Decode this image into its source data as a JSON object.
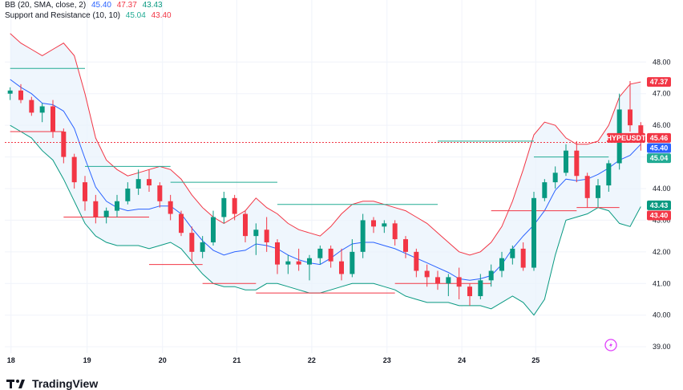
{
  "legend": {
    "bb_label": "BB (20, SMA, close, 2)",
    "bb_basis": "45.40",
    "bb_upper": "47.37",
    "bb_lower": "43.43",
    "sr_label": "Support and Resistance (10, 10)",
    "sr_resistance": "45.04",
    "sr_support": "43.40"
  },
  "brand": {
    "name": "TradingView"
  },
  "colors": {
    "up": "#089981",
    "down": "#f23645",
    "basis": "#2962ff",
    "upper": "#f23645",
    "lower": "#089981",
    "band_fill": "#e8f2fc",
    "resistance": "#22ab94",
    "support": "#f23645"
  },
  "chart_data": {
    "type": "candlestick",
    "symbol_tag": "HYPEUSDT",
    "y_ticks": [
      39.0,
      40.0,
      41.0,
      42.0,
      43.0,
      44.0,
      45.0,
      46.0,
      47.0,
      48.0
    ],
    "y_tick_labels": [
      "39.00",
      "40.00",
      "41.00",
      "42.00",
      "43.00",
      "44.00",
      "45.00",
      "46.00",
      "47.00",
      "48.00"
    ],
    "ylim": [
      38.8,
      49.2
    ],
    "x_ticks": [
      0.08,
      7.2,
      14.26,
      21.2,
      28.22,
      35.26,
      42.26,
      49.17
    ],
    "x_tick_labels": [
      "18",
      "19",
      "20",
      "21",
      "22",
      "23",
      "24",
      "25"
    ],
    "xlim": [
      -0.5,
      59.5
    ],
    "current_price": 45.46,
    "price_tags": [
      {
        "label": "47.37",
        "value": 47.37,
        "color": "#f23645"
      },
      {
        "label": "HYPEUSDT",
        "value": 45.6,
        "color": "#f23645"
      },
      {
        "label": "45.46",
        "value": 45.6,
        "color": "#f23645"
      },
      {
        "label": "45.40",
        "value": 45.28,
        "color": "#2962ff"
      },
      {
        "label": "45.04",
        "value": 44.96,
        "color": "#22ab94"
      },
      {
        "label": "43.43",
        "value": 43.47,
        "color": "#089981"
      },
      {
        "label": "43.40",
        "value": 43.15,
        "color": "#f23645"
      }
    ],
    "candles": [
      [
        47.0,
        47.2,
        46.8,
        47.1
      ],
      [
        47.1,
        47.3,
        46.7,
        46.8
      ],
      [
        46.8,
        46.9,
        46.3,
        46.4
      ],
      [
        46.4,
        46.7,
        46.1,
        46.6
      ],
      [
        46.6,
        46.8,
        45.6,
        45.8
      ],
      [
        45.8,
        45.9,
        44.8,
        45.0
      ],
      [
        45.0,
        45.1,
        44.0,
        44.2
      ],
      [
        44.2,
        44.4,
        43.3,
        43.6
      ],
      [
        43.6,
        43.8,
        42.9,
        43.1
      ],
      [
        43.1,
        43.4,
        42.9,
        43.3
      ],
      [
        43.3,
        43.8,
        43.1,
        43.6
      ],
      [
        43.6,
        44.2,
        43.5,
        44.0
      ],
      [
        44.0,
        44.6,
        43.8,
        44.3
      ],
      [
        44.3,
        44.6,
        43.9,
        44.1
      ],
      [
        44.1,
        44.2,
        43.4,
        43.6
      ],
      [
        43.6,
        43.8,
        43.0,
        43.2
      ],
      [
        43.2,
        43.3,
        42.5,
        42.6
      ],
      [
        42.6,
        42.8,
        41.7,
        42.0
      ],
      [
        42.0,
        42.5,
        41.8,
        42.3
      ],
      [
        42.3,
        43.3,
        42.2,
        43.1
      ],
      [
        43.1,
        43.9,
        42.9,
        43.7
      ],
      [
        43.7,
        43.8,
        43.0,
        43.2
      ],
      [
        43.2,
        43.3,
        42.3,
        42.5
      ],
      [
        42.5,
        42.9,
        41.9,
        42.7
      ],
      [
        42.7,
        43.1,
        42.0,
        42.3
      ],
      [
        42.3,
        42.4,
        41.3,
        41.6
      ],
      [
        41.6,
        41.9,
        41.3,
        41.7
      ],
      [
        41.7,
        42.1,
        41.4,
        41.6
      ],
      [
        41.6,
        41.9,
        41.1,
        41.8
      ],
      [
        41.8,
        42.2,
        41.6,
        42.1
      ],
      [
        42.1,
        42.2,
        41.5,
        41.7
      ],
      [
        41.7,
        42.1,
        41.1,
        41.3
      ],
      [
        41.3,
        42.4,
        41.2,
        42.0
      ],
      [
        42.0,
        43.2,
        41.8,
        43.0
      ],
      [
        43.0,
        43.1,
        42.6,
        42.8
      ],
      [
        42.8,
        43.0,
        42.6,
        42.9
      ],
      [
        42.9,
        43.0,
        42.2,
        42.4
      ],
      [
        42.4,
        42.5,
        41.8,
        42.0
      ],
      [
        42.0,
        42.1,
        41.2,
        41.4
      ],
      [
        41.4,
        41.6,
        40.9,
        41.2
      ],
      [
        41.2,
        41.4,
        40.8,
        41.0
      ],
      [
        41.0,
        41.3,
        40.6,
        41.2
      ],
      [
        41.2,
        41.5,
        40.5,
        40.9
      ],
      [
        40.9,
        41.0,
        40.3,
        40.6
      ],
      [
        40.6,
        41.3,
        40.5,
        41.1
      ],
      [
        41.1,
        41.6,
        40.9,
        41.4
      ],
      [
        41.4,
        42.0,
        41.2,
        41.8
      ],
      [
        41.8,
        42.2,
        41.6,
        42.1
      ],
      [
        42.1,
        42.3,
        41.4,
        41.5
      ],
      [
        41.5,
        43.9,
        41.4,
        43.7
      ],
      [
        43.7,
        44.3,
        43.6,
        44.2
      ],
      [
        44.2,
        44.7,
        44.0,
        44.5
      ],
      [
        44.5,
        45.4,
        44.4,
        45.2
      ],
      [
        45.2,
        45.5,
        44.2,
        44.4
      ],
      [
        44.4,
        44.5,
        43.4,
        43.7
      ],
      [
        43.7,
        44.3,
        43.4,
        44.1
      ],
      [
        44.1,
        44.9,
        43.9,
        44.8
      ],
      [
        44.8,
        47.0,
        44.6,
        46.5
      ],
      [
        46.5,
        47.4,
        45.8,
        46.0
      ],
      [
        46.0,
        46.1,
        45.2,
        45.46
      ]
    ],
    "bb_upper_line": [
      48.9,
      48.6,
      48.4,
      48.2,
      48.4,
      48.6,
      48.2,
      47.0,
      45.6,
      44.9,
      44.6,
      44.4,
      44.5,
      44.6,
      44.7,
      44.6,
      44.3,
      43.8,
      43.4,
      43.1,
      42.9,
      43.1,
      43.3,
      43.7,
      43.4,
      43.2,
      42.9,
      42.7,
      42.6,
      42.5,
      42.8,
      43.2,
      43.5,
      43.6,
      43.6,
      43.5,
      43.4,
      43.3,
      43.1,
      42.9,
      42.6,
      42.3,
      42.0,
      41.9,
      42.0,
      42.3,
      42.8,
      43.6,
      44.6,
      45.7,
      46.1,
      46.0,
      45.6,
      45.4,
      45.4,
      45.5,
      46.0,
      46.9,
      47.3,
      47.37
    ],
    "bb_lower_line": [
      46.0,
      45.8,
      45.6,
      45.2,
      44.9,
      44.3,
      43.6,
      42.9,
      42.5,
      42.3,
      42.2,
      42.2,
      42.2,
      42.1,
      42.2,
      42.3,
      42.1,
      41.7,
      41.3,
      41.0,
      40.9,
      40.9,
      40.8,
      40.8,
      41.0,
      41.0,
      40.9,
      40.8,
      40.7,
      40.7,
      40.8,
      40.9,
      41.0,
      41.0,
      41.0,
      40.9,
      40.8,
      40.6,
      40.5,
      40.4,
      40.4,
      40.4,
      40.3,
      40.3,
      40.3,
      40.2,
      40.4,
      40.6,
      40.4,
      40.0,
      40.5,
      41.9,
      43.0,
      43.1,
      43.2,
      43.4,
      43.3,
      42.9,
      42.8,
      43.43
    ],
    "resistance_segments": [
      [
        0,
        7,
        47.8
      ],
      [
        7,
        15,
        44.7
      ],
      [
        15,
        25,
        44.2
      ],
      [
        25,
        40,
        43.5
      ],
      [
        40,
        49,
        45.5
      ],
      [
        49,
        56,
        45.0
      ]
    ],
    "support_segments": [
      [
        0,
        5,
        45.8
      ],
      [
        5,
        13,
        43.1
      ],
      [
        13,
        18,
        41.6
      ],
      [
        18,
        23,
        41.0
      ],
      [
        23,
        36,
        40.7
      ],
      [
        36,
        45,
        41.0
      ],
      [
        45,
        53,
        43.3
      ],
      [
        53,
        57,
        43.4
      ]
    ]
  }
}
